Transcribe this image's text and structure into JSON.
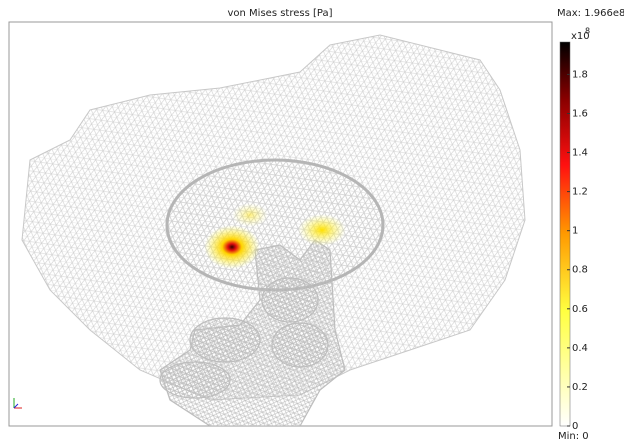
{
  "plot": {
    "title": "von Mises stress [Pa]"
  },
  "colorbar": {
    "max_label": "Max: 1.966e8",
    "min_label": "Min: 0",
    "multiplier": "x10",
    "exponent": "8",
    "range": [
      0,
      1.966
    ],
    "ticks": [
      0,
      0.2,
      0.4,
      0.6,
      0.8,
      1,
      1.2,
      1.4,
      1.6,
      1.8
    ]
  }
}
